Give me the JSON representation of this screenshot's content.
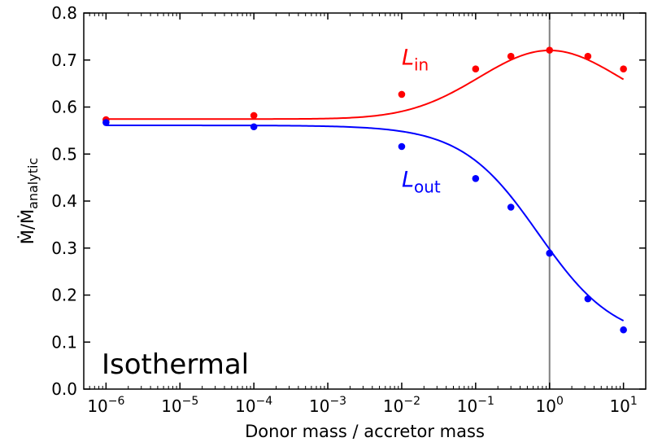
{
  "chart_data": {
    "type": "scatter",
    "xscale": "log",
    "xlabel": "Donor mass / accretor mass",
    "ylabel": "Ṁ/Ṁ",
    "ylabel_sub": "analytic",
    "xlim": [
      5e-07,
      20
    ],
    "ylim": [
      0.0,
      0.8
    ],
    "x_ticks": [
      1e-06,
      1e-05,
      0.0001,
      0.001,
      0.01,
      0.1,
      1,
      10
    ],
    "x_tick_labels": [
      {
        "base": "10",
        "exp": "−6"
      },
      {
        "base": "10",
        "exp": "−5"
      },
      {
        "base": "10",
        "exp": "−4"
      },
      {
        "base": "10",
        "exp": "−3"
      },
      {
        "base": "10",
        "exp": "−2"
      },
      {
        "base": "10",
        "exp": "−1"
      },
      {
        "base": "10",
        "exp": "0"
      },
      {
        "base": "10",
        "exp": "1"
      }
    ],
    "y_ticks": [
      0.0,
      0.1,
      0.2,
      0.3,
      0.4,
      0.5,
      0.6,
      0.7,
      0.8
    ],
    "y_tick_labels": [
      "0.0",
      "0.1",
      "0.2",
      "0.3",
      "0.4",
      "0.5",
      "0.6",
      "0.7",
      "0.8"
    ],
    "vline_x": 1,
    "vline_color": "#808080",
    "annotation": "Isothermal",
    "series": [
      {
        "name": "L_in",
        "label_main": "L",
        "label_sub": "in",
        "label_at": [
          0.01,
          0.69
        ],
        "color": "#ff0000",
        "x": [
          1e-06,
          0.0001,
          0.01,
          0.1,
          0.3,
          1,
          3.3,
          10
        ],
        "y": [
          0.573,
          0.582,
          0.627,
          0.681,
          0.708,
          0.721,
          0.708,
          0.681
        ],
        "curve": {
          "c": 0.5745,
          "a": 0.146,
          "mu": 0.0,
          "s": 1.35
        }
      },
      {
        "name": "L_out",
        "label_main": "L",
        "label_sub": "out",
        "label_at": [
          0.01,
          0.43
        ],
        "color": "#0000ff",
        "x": [
          1e-06,
          0.0001,
          0.01,
          0.1,
          0.3,
          1,
          3.3,
          10
        ],
        "y": [
          0.567,
          0.558,
          0.516,
          0.448,
          0.387,
          0.289,
          0.192,
          0.126
        ],
        "curve": {
          "lo": 0.1,
          "hi": 0.561,
          "x0": -0.15,
          "w": 0.52
        }
      }
    ]
  }
}
